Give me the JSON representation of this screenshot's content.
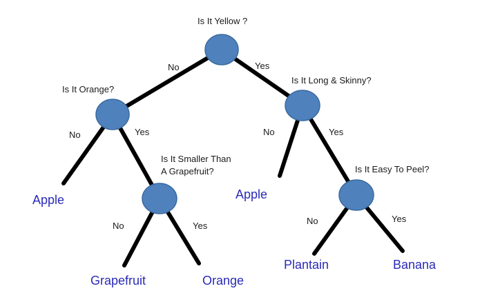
{
  "colors": {
    "node_fill": "#4f81bd",
    "edge": "#000000",
    "leaf_text": "#2a2ab8"
  },
  "questions": {
    "root": "Is It Yellow ?",
    "orange": "Is It Orange?",
    "long": "Is It Long & Skinny?",
    "smaller": "Is It Smaller Than\nA Grapefruit?",
    "peel": "Is It Easy To Peel?"
  },
  "edges": {
    "root_no": "No",
    "root_yes": "Yes",
    "orange_no": "No",
    "orange_yes": "Yes",
    "long_no": "No",
    "long_yes": "Yes",
    "smaller_no": "No",
    "smaller_yes": "Yes",
    "peel_no": "No",
    "peel_yes": "Yes"
  },
  "leaves": {
    "apple_left": "Apple",
    "apple_right": "Apple",
    "grapefruit": "Grapefruit",
    "orange": "Orange",
    "plantain": "Plantain",
    "banana": "Banana"
  }
}
